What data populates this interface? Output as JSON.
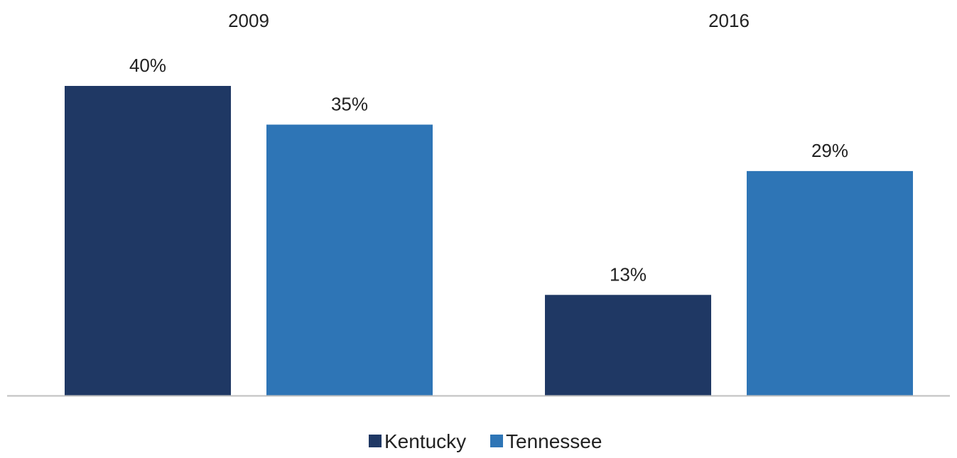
{
  "chart_data": {
    "type": "bar",
    "categories": [
      "2009",
      "2016"
    ],
    "series": [
      {
        "name": "Kentucky",
        "values": [
          40,
          13
        ],
        "labels": [
          "40%",
          "13%"
        ],
        "color": "#1f3864"
      },
      {
        "name": "Tennessee",
        "values": [
          35,
          29
        ],
        "labels": [
          "35%",
          "29%"
        ],
        "color": "#2e75b6"
      }
    ],
    "title": "",
    "xlabel": "",
    "ylabel": "",
    "ylim": [
      0,
      40
    ],
    "grid": false,
    "category_label_position": "top",
    "legend_position": "bottom-center",
    "axis_color": "#bfbfbf"
  }
}
